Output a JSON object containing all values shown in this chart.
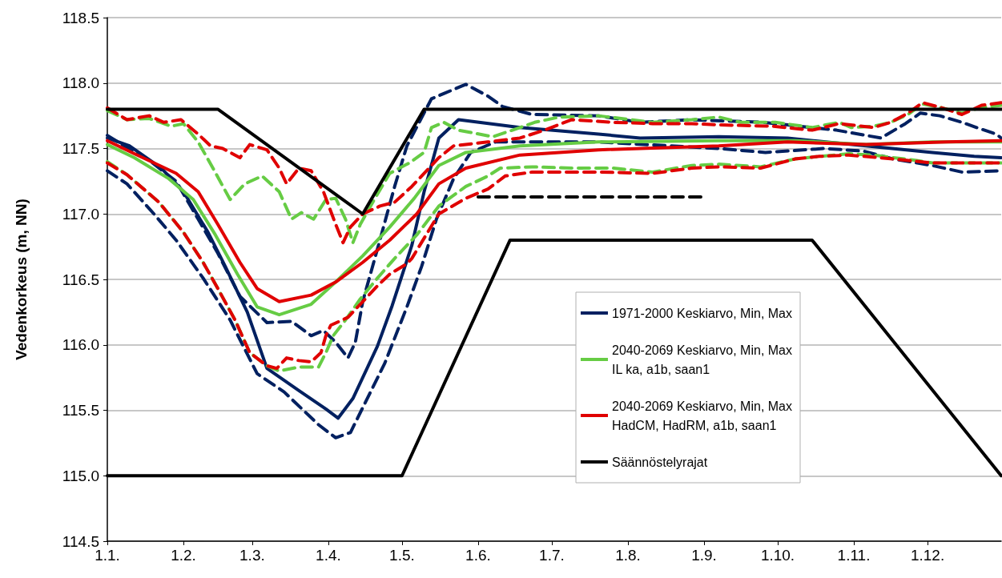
{
  "chart_data": {
    "type": "line",
    "ylabel": "Vedenkorkeus (m, NN)",
    "xlim": [
      "--01-01",
      "--12-31"
    ],
    "xticks": [
      {
        "value": "--01-01",
        "label": "1.1."
      },
      {
        "value": "--02-01",
        "label": "1.2."
      },
      {
        "value": "--03-01",
        "label": "1.3."
      },
      {
        "value": "--04-01",
        "label": "1.4."
      },
      {
        "value": "--05-01",
        "label": "1.5."
      },
      {
        "value": "--06-01",
        "label": "1.6."
      },
      {
        "value": "--07-01",
        "label": "1.7."
      },
      {
        "value": "--08-01",
        "label": "1.8."
      },
      {
        "value": "--09-01",
        "label": "1.9."
      },
      {
        "value": "--10-01",
        "label": "1.10."
      },
      {
        "value": "--11-01",
        "label": "1.11."
      },
      {
        "value": "--12-01",
        "label": "1.12."
      }
    ],
    "ylim": [
      114.5,
      118.5
    ],
    "yticks": [
      {
        "value": 114.5,
        "label": "114.5"
      },
      {
        "value": 115,
        "label": "115.0"
      },
      {
        "value": 115.5,
        "label": "115.5"
      },
      {
        "value": 116,
        "label": "116.0"
      },
      {
        "value": 116.5,
        "label": "116.5"
      },
      {
        "value": 117,
        "label": "117.0"
      },
      {
        "value": 117.5,
        "label": "117.5"
      },
      {
        "value": 118,
        "label": "118.0"
      },
      {
        "value": 118.5,
        "label": "118.5"
      }
    ],
    "grid": "y",
    "legend": "right",
    "marker": "none",
    "series": [
      {
        "name": "1971-2000 Keskiarvo, Min, Max",
        "color": "#002060",
        "line_style": "solid",
        "x": [
          "--01-01",
          "--01-10",
          "--01-23",
          "--02-01",
          "--02-11",
          "--02-18",
          "--02-27",
          "--03-07",
          "--03-20",
          "--03-31",
          "--04-05",
          "--04-11",
          "--04-21",
          "--04-27",
          "--05-05",
          "--05-10",
          "--05-16",
          "--05-24",
          "--06-18",
          "--07-20",
          "--08-06",
          "--09-07",
          "--10-05",
          "--11-06",
          "--12-03",
          "--12-20",
          "--12-31"
        ],
        "values": [
          117.58,
          117.52,
          117.35,
          117.17,
          116.86,
          116.6,
          116.25,
          115.82,
          115.65,
          115.51,
          115.44,
          115.59,
          115.99,
          116.3,
          116.76,
          117.17,
          117.58,
          117.72,
          117.66,
          117.61,
          117.58,
          117.59,
          117.58,
          117.52,
          117.47,
          117.44,
          117.43
        ]
      },
      {
        "color": "#002060",
        "line_style": "dashed",
        "x": [
          "--01-01",
          "--01-09",
          "--01-20",
          "--01-29",
          "--02-09",
          "--02-20",
          "--03-03",
          "--03-14",
          "--03-28",
          "--04-04",
          "--04-10",
          "--04-15",
          "--04-24",
          "--05-03",
          "--05-09",
          "--05-15",
          "--05-22",
          "--05-29",
          "--06-08",
          "--07-20",
          "--09-07",
          "--09-26",
          "--10-20",
          "--11-05",
          "--11-17",
          "--12-03",
          "--12-15",
          "--12-31"
        ],
        "values": [
          117.33,
          117.23,
          117.0,
          116.8,
          116.51,
          116.19,
          115.78,
          115.64,
          115.39,
          115.29,
          115.33,
          115.52,
          115.86,
          116.29,
          116.6,
          116.96,
          117.27,
          117.47,
          117.55,
          117.55,
          117.5,
          117.47,
          117.5,
          117.48,
          117.42,
          117.37,
          117.32,
          117.33
        ]
      },
      {
        "color": "#002060",
        "line_style": "dashed",
        "x": [
          "--01-01",
          "--01-07",
          "--01-18",
          "--01-29",
          "--02-07",
          "--02-15",
          "--02-24",
          "--03-07",
          "--03-17",
          "--03-25",
          "--03-30",
          "--04-04",
          "--04-09",
          "--04-12",
          "--04-15",
          "--04-22",
          "--04-28",
          "--05-03",
          "--05-13",
          "--05-18",
          "--05-27",
          "--06-05",
          "--06-11",
          "--06-23",
          "--07-20",
          "--08-06",
          "--08-27",
          "--09-25",
          "--10-25",
          "--11-12",
          "--11-22",
          "--11-28",
          "--12-06",
          "--12-15",
          "--12-21",
          "--12-29",
          "--12-31"
        ],
        "values": [
          117.6,
          117.53,
          117.41,
          117.25,
          116.96,
          116.7,
          116.37,
          116.17,
          116.18,
          116.07,
          116.11,
          116.02,
          115.9,
          116.02,
          116.33,
          116.8,
          117.21,
          117.52,
          117.88,
          117.92,
          117.99,
          117.9,
          117.82,
          117.76,
          117.75,
          117.7,
          117.72,
          117.7,
          117.64,
          117.58,
          117.69,
          117.77,
          117.75,
          117.7,
          117.66,
          117.61,
          117.58
        ]
      },
      {
        "name": "2040-2069 Keskiarvo, Min, Max\nIL ka, a1b, saan1",
        "color": "#66cc44",
        "line_style": "solid",
        "x": [
          "--01-01",
          "--01-12",
          "--01-26",
          "--02-05",
          "--02-14",
          "--02-23",
          "--03-03",
          "--03-12",
          "--03-25",
          "--04-04",
          "--04-15",
          "--04-26",
          "--05-06",
          "--05-16",
          "--05-27",
          "--06-18",
          "--07-20",
          "--09-07",
          "--10-08",
          "--11-06",
          "--12-03",
          "--12-31"
        ],
        "values": [
          117.53,
          117.43,
          117.27,
          117.11,
          116.84,
          116.54,
          116.29,
          116.23,
          116.31,
          116.48,
          116.68,
          116.9,
          117.12,
          117.37,
          117.47,
          117.52,
          117.55,
          117.56,
          117.56,
          117.53,
          117.55,
          117.55
        ]
      },
      {
        "color": "#66cc44",
        "line_style": "dashed",
        "x": [
          "--01-01",
          "--01-09",
          "--01-22",
          "--02-01",
          "--02-09",
          "--02-15",
          "--02-22",
          "--02-28",
          "--03-07",
          "--03-12",
          "--03-20",
          "--03-28",
          "--03-31",
          "--04-03",
          "--04-08",
          "--04-14",
          "--04-21",
          "--04-28",
          "--05-07",
          "--05-16",
          "--05-27",
          "--06-05",
          "--06-10",
          "--06-23",
          "--07-09",
          "--07-26",
          "--08-11",
          "--08-27",
          "--09-07",
          "--09-24",
          "--10-08",
          "--10-18",
          "--10-30",
          "--11-09",
          "--11-17",
          "--11-26",
          "--12-03",
          "--12-15",
          "--12-31"
        ],
        "values": [
          117.4,
          117.3,
          117.09,
          116.86,
          116.63,
          116.43,
          116.19,
          115.94,
          115.84,
          115.8,
          115.83,
          115.83,
          115.94,
          116.07,
          116.19,
          116.35,
          116.51,
          116.66,
          116.84,
          117.06,
          117.21,
          117.29,
          117.35,
          117.36,
          117.35,
          117.35,
          117.32,
          117.37,
          117.38,
          117.36,
          117.42,
          117.44,
          117.46,
          117.45,
          117.43,
          117.41,
          117.39,
          117.39,
          117.39
        ]
      },
      {
        "color": "#66cc44",
        "line_style": "dashed",
        "x": [
          "--01-01",
          "--01-09",
          "--01-18",
          "--01-27",
          "--02-01",
          "--02-07",
          "--02-13",
          "--02-20",
          "--02-26",
          "--03-05",
          "--03-12",
          "--03-17",
          "--03-21",
          "--03-26",
          "--03-31",
          "--04-04",
          "--04-08",
          "--04-11",
          "--04-14",
          "--04-20",
          "--04-26",
          "--05-04",
          "--05-10",
          "--05-13",
          "--05-18",
          "--05-24",
          "--06-07",
          "--06-18",
          "--06-24",
          "--07-04",
          "--07-20",
          "--08-11",
          "--08-27",
          "--09-07",
          "--09-16",
          "--09-30",
          "--10-15",
          "--10-26",
          "--10-31",
          "--11-09",
          "--11-16",
          "--11-23",
          "--11-29",
          "--12-07",
          "--12-15",
          "--12-22",
          "--12-31"
        ],
        "values": [
          117.79,
          117.72,
          117.73,
          117.67,
          117.69,
          117.55,
          117.35,
          117.11,
          117.23,
          117.29,
          117.17,
          116.96,
          117.01,
          116.96,
          117.11,
          117.12,
          116.96,
          116.78,
          116.92,
          117.12,
          117.31,
          117.39,
          117.47,
          117.66,
          117.7,
          117.64,
          117.59,
          117.66,
          117.7,
          117.74,
          117.75,
          117.7,
          117.72,
          117.74,
          117.7,
          117.7,
          117.66,
          117.7,
          117.66,
          117.67,
          117.7,
          117.76,
          117.84,
          117.81,
          117.77,
          117.81,
          117.83
        ]
      },
      {
        "name": "2040-2069 Keskiarvo, Min, Max\nHadCM, HadRM, a1b, saan1",
        "color": "#e00000",
        "line_style": "solid",
        "x": [
          "--01-01",
          "--01-12",
          "--01-29",
          "--02-07",
          "--02-15",
          "--02-24",
          "--03-03",
          "--03-12",
          "--03-25",
          "--04-04",
          "--04-15",
          "--04-26",
          "--05-07",
          "--05-16",
          "--05-27",
          "--06-18",
          "--07-20",
          "--09-07",
          "--10-05",
          "--11-06",
          "--12-09",
          "--12-31"
        ],
        "values": [
          117.56,
          117.46,
          117.31,
          117.17,
          116.92,
          116.63,
          116.43,
          116.33,
          116.38,
          116.48,
          116.63,
          116.8,
          117.0,
          117.23,
          117.35,
          117.45,
          117.49,
          117.52,
          117.55,
          117.53,
          117.55,
          117.56
        ]
      },
      {
        "color": "#e00000",
        "line_style": "dashed",
        "x": [
          "--01-01",
          "--01-09",
          "--01-22",
          "--02-01",
          "--02-09",
          "--02-15",
          "--02-22",
          "--02-28",
          "--03-07",
          "--03-11",
          "--03-15",
          "--03-20",
          "--03-25",
          "--03-29",
          "--03-31",
          "--04-02",
          "--04-09",
          "--04-15",
          "--04-21",
          "--04-26",
          "--05-03",
          "--05-05",
          "--05-16",
          "--05-27",
          "--06-05",
          "--06-12",
          "--06-23",
          "--07-20",
          "--08-11",
          "--08-27",
          "--09-07",
          "--09-24",
          "--10-08",
          "--10-18",
          "--10-30",
          "--11-17",
          "--12-03",
          "--12-31"
        ],
        "values": [
          117.39,
          117.3,
          117.09,
          116.86,
          116.63,
          116.43,
          116.19,
          115.94,
          115.84,
          115.82,
          115.9,
          115.88,
          115.87,
          115.94,
          116.07,
          116.15,
          116.21,
          116.33,
          116.45,
          116.54,
          116.62,
          116.66,
          117.0,
          117.12,
          117.19,
          117.29,
          117.32,
          117.32,
          117.31,
          117.35,
          117.36,
          117.35,
          117.42,
          117.44,
          117.45,
          117.42,
          117.39,
          117.39
        ]
      },
      {
        "color": "#e00000",
        "line_style": "dashed",
        "x": [
          "--01-01",
          "--01-09",
          "--01-18",
          "--01-24",
          "--01-31",
          "--02-07",
          "--02-12",
          "--02-17",
          "--02-24",
          "--02-28",
          "--03-07",
          "--03-12",
          "--03-15",
          "--03-20",
          "--03-25",
          "--03-30",
          "--04-04",
          "--04-07",
          "--04-10",
          "--04-15",
          "--04-22",
          "--04-28",
          "--05-05",
          "--05-16",
          "--05-22",
          "--06-05",
          "--06-18",
          "--06-28",
          "--07-09",
          "--07-26",
          "--08-11",
          "--08-27",
          "--09-08",
          "--09-29",
          "--10-15",
          "--10-26",
          "--11-09",
          "--11-16",
          "--11-23",
          "--11-29",
          "--12-07",
          "--12-15",
          "--12-23",
          "--12-31"
        ],
        "values": [
          117.81,
          117.72,
          117.75,
          117.7,
          117.72,
          117.61,
          117.52,
          117.5,
          117.43,
          117.53,
          117.49,
          117.35,
          117.23,
          117.35,
          117.33,
          117.17,
          116.92,
          116.78,
          116.9,
          117.0,
          117.06,
          117.09,
          117.21,
          117.43,
          117.52,
          117.55,
          117.58,
          117.64,
          117.72,
          117.7,
          117.69,
          117.69,
          117.68,
          117.67,
          117.64,
          117.69,
          117.66,
          117.7,
          117.77,
          117.85,
          117.81,
          117.76,
          117.83,
          117.85
        ]
      },
      {
        "name": "Säännöstelyrajat",
        "color": "#000000",
        "line_style": "solid",
        "x": [
          "--01-01",
          "--02-15",
          "--04-15",
          "--05-10",
          "--12-31"
        ],
        "values": [
          117.8,
          117.8,
          117.0,
          117.8,
          117.8
        ]
      },
      {
        "color": "#000000",
        "line_style": "solid",
        "x": [
          "--01-01",
          "--05-01",
          "--06-14",
          "--10-15",
          "--12-31"
        ],
        "values": [
          115.0,
          115.0,
          116.8,
          116.8,
          115.0
        ]
      },
      {
        "color": "#000000",
        "line_style": "dashed",
        "x": [
          "--06-01",
          "--09-01"
        ],
        "values": [
          117.13,
          117.13
        ]
      }
    ]
  }
}
